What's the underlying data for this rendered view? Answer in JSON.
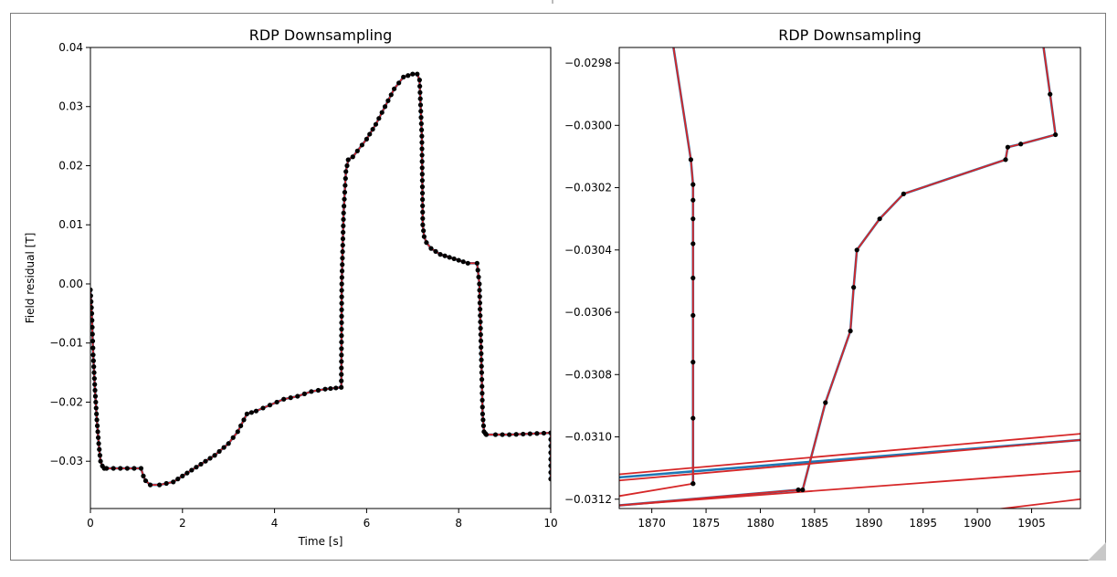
{
  "chart_data": [
    {
      "type": "line",
      "title": "RDP Downsampling",
      "xlabel": "Time [s]",
      "ylabel": "Field residual [T]",
      "xlim": [
        0,
        10
      ],
      "ylim": [
        -0.038,
        0.04
      ],
      "xticks": [
        0,
        2,
        4,
        6,
        8,
        10
      ],
      "xtick_labels": [
        "0",
        "2",
        "4",
        "6",
        "8",
        "10"
      ],
      "yticks": [
        -0.03,
        -0.02,
        -0.01,
        0.0,
        0.01,
        0.02,
        0.03,
        0.04
      ],
      "ytick_labels": [
        "−0.03",
        "−0.02",
        "−0.01",
        "0.00",
        "0.01",
        "0.02",
        "0.03",
        "0.04"
      ],
      "grid": false,
      "colors": {
        "original": "#1f77b4",
        "downsampled": "#d62728",
        "markers": "#000000"
      },
      "series": [
        {
          "role": "original",
          "x": [
            0,
            0.03,
            0.06,
            0.1,
            0.14,
            0.18,
            0.22,
            0.26,
            0.3,
            0.35,
            1.1,
            1.15,
            1.2,
            1.3,
            1.5,
            1.8,
            2.0,
            2.2,
            2.5,
            2.7,
            3.0,
            3.2,
            3.4,
            3.6,
            3.9,
            4.2,
            4.5,
            4.8,
            5.1,
            5.45,
            5.46,
            5.5,
            5.55,
            5.6,
            5.7,
            5.8,
            6.0,
            6.2,
            6.4,
            6.6,
            6.8,
            7.0,
            7.1,
            7.15,
            7.2,
            7.22,
            7.25,
            7.3,
            7.4,
            7.6,
            7.8,
            8.0,
            8.2,
            8.4,
            8.45,
            8.5,
            8.52,
            8.55,
            8.58,
            8.6,
            8.8,
            9.1,
            10.0,
            10.0
          ],
          "y": [
            -0.001,
            -0.005,
            -0.012,
            -0.018,
            -0.023,
            -0.027,
            -0.03,
            -0.0308,
            -0.0312,
            -0.0312,
            -0.0312,
            -0.0325,
            -0.0333,
            -0.034,
            -0.034,
            -0.0335,
            -0.0325,
            -0.0315,
            -0.03,
            -0.029,
            -0.027,
            -0.025,
            -0.022,
            -0.0215,
            -0.0205,
            -0.0195,
            -0.019,
            -0.0182,
            -0.0178,
            -0.0175,
            0.0,
            0.012,
            0.019,
            0.021,
            0.0215,
            0.0225,
            0.0245,
            0.027,
            0.03,
            0.033,
            0.035,
            0.0355,
            0.0355,
            0.0345,
            0.025,
            0.01,
            0.008,
            0.007,
            0.006,
            0.005,
            0.0045,
            0.004,
            0.0035,
            0.0035,
            0.0,
            -0.015,
            -0.022,
            -0.025,
            -0.0253,
            -0.0255,
            -0.0255,
            -0.0255,
            -0.0252,
            -0.033
          ]
        },
        {
          "role": "downsampled",
          "x": [
            0,
            0.03,
            0.06,
            0.1,
            0.14,
            0.18,
            0.22,
            0.26,
            0.3,
            0.35,
            1.1,
            1.15,
            1.2,
            1.3,
            1.5,
            1.8,
            2.0,
            2.2,
            2.5,
            2.7,
            3.0,
            3.2,
            3.4,
            3.6,
            3.9,
            4.2,
            4.5,
            4.8,
            5.1,
            5.45,
            5.46,
            5.5,
            5.55,
            5.6,
            5.7,
            5.8,
            6.0,
            6.2,
            6.4,
            6.6,
            6.8,
            7.0,
            7.1,
            7.15,
            7.2,
            7.22,
            7.25,
            7.3,
            7.4,
            7.6,
            7.8,
            8.0,
            8.2,
            8.4,
            8.45,
            8.5,
            8.52,
            8.55,
            8.58,
            8.6,
            8.8,
            9.1,
            10.0,
            10.0
          ],
          "y": [
            -0.001,
            -0.005,
            -0.012,
            -0.018,
            -0.023,
            -0.027,
            -0.03,
            -0.0308,
            -0.0312,
            -0.0312,
            -0.0312,
            -0.0325,
            -0.0333,
            -0.034,
            -0.034,
            -0.0335,
            -0.0325,
            -0.0315,
            -0.03,
            -0.029,
            -0.027,
            -0.025,
            -0.022,
            -0.0215,
            -0.0205,
            -0.0195,
            -0.019,
            -0.0182,
            -0.0178,
            -0.0175,
            0.0,
            0.012,
            0.019,
            0.021,
            0.0215,
            0.0225,
            0.0245,
            0.027,
            0.03,
            0.033,
            0.035,
            0.0355,
            0.0355,
            0.0345,
            0.025,
            0.01,
            0.008,
            0.007,
            0.006,
            0.005,
            0.0045,
            0.004,
            0.0035,
            0.0035,
            0.0,
            -0.015,
            -0.022,
            -0.025,
            -0.0253,
            -0.0255,
            -0.0255,
            -0.0255,
            -0.0252,
            -0.033
          ]
        }
      ]
    },
    {
      "type": "line",
      "title": "RDP Downsampling",
      "xlabel": "",
      "ylabel": "",
      "xlim": [
        1867,
        1909.5
      ],
      "ylim": [
        -0.03123,
        -0.02975
      ],
      "xticks": [
        1870,
        1875,
        1880,
        1885,
        1890,
        1895,
        1900,
        1905
      ],
      "xtick_labels": [
        "1870",
        "1875",
        "1880",
        "1885",
        "1890",
        "1895",
        "1900",
        "1905"
      ],
      "yticks": [
        -0.0298,
        -0.03,
        -0.0302,
        -0.0304,
        -0.0306,
        -0.0308,
        -0.031,
        -0.0312
      ],
      "ytick_labels": [
        "−0.0298",
        "−0.0300",
        "−0.0302",
        "−0.0304",
        "−0.0306",
        "−0.0308",
        "−0.0310",
        "−0.0312"
      ],
      "grid": false,
      "colors": {
        "original": "#1f77b4",
        "downsampled": "#d62728",
        "markers": "#000000"
      },
      "series": [
        {
          "role": "original-segment-1",
          "x": [
            1872.0,
            1873.6,
            1873.8,
            1873.8,
            1873.8
          ],
          "y": [
            -0.02975,
            -0.03011,
            -0.03019,
            -0.0305,
            -0.03115
          ]
        },
        {
          "role": "original-segment-2",
          "x": [
            1867,
            1883.5,
            1883.9,
            1886.0,
            1888.3,
            1888.6,
            1888.9,
            1891.0,
            1893.2,
            1902.6,
            1902.8,
            1904.0,
            1907.2,
            1906.7,
            1906.1
          ],
          "y": [
            -0.03122,
            -0.03117,
            -0.03117,
            -0.03089,
            -0.03066,
            -0.03052,
            -0.0304,
            -0.0303,
            -0.03022,
            -0.03011,
            -0.03007,
            -0.03006,
            -0.03003,
            -0.0299,
            -0.02975
          ]
        },
        {
          "role": "downsampled-segment-1",
          "x": [
            1872.0,
            1873.6,
            1873.8,
            1873.8,
            1873.8
          ],
          "y": [
            -0.02975,
            -0.03011,
            -0.03019,
            -0.0305,
            -0.03115
          ]
        },
        {
          "role": "downsampled-segment-2",
          "x": [
            1867,
            1883.5,
            1883.9,
            1886.0,
            1888.3,
            1888.6,
            1888.9,
            1891.0,
            1893.2,
            1902.6,
            1902.8,
            1904.0,
            1907.2,
            1906.7,
            1906.1
          ],
          "y": [
            -0.03122,
            -0.03117,
            -0.03117,
            -0.03089,
            -0.03066,
            -0.03052,
            -0.0304,
            -0.0303,
            -0.03022,
            -0.03011,
            -0.03007,
            -0.03006,
            -0.03003,
            -0.0299,
            -0.02975
          ]
        },
        {
          "role": "downsampled-line-a",
          "x": [
            1867,
            1909.5
          ],
          "y": [
            -0.03112,
            -0.03099
          ]
        },
        {
          "role": "downsampled-line-b",
          "x": [
            1867,
            1909.5
          ],
          "y": [
            -0.03114,
            -0.03101
          ]
        },
        {
          "role": "original-line-a",
          "x": [
            1867,
            1909.5
          ],
          "y": [
            -0.03113,
            -0.03101
          ]
        },
        {
          "role": "downsampled-line-c",
          "x": [
            1867,
            1909.5
          ],
          "y": [
            -0.03122,
            -0.03111
          ]
        },
        {
          "role": "downsampled-line-d",
          "x": [
            1867,
            1873.8
          ],
          "y": [
            -0.03119,
            -0.03115
          ]
        },
        {
          "role": "downsampled-line-e",
          "x": [
            1900.0,
            1909.5
          ],
          "y": [
            -0.03124,
            -0.0312
          ]
        }
      ],
      "markers": {
        "x": [
          1873.6,
          1873.8,
          1873.8,
          1873.8,
          1873.8,
          1873.8,
          1873.8,
          1873.8,
          1873.8,
          1873.8,
          1873.8,
          1883.5,
          1883.9,
          1886.0,
          1888.3,
          1888.6,
          1888.9,
          1891.0,
          1893.2,
          1902.6,
          1902.8,
          1904.0,
          1907.2,
          1906.7
        ],
        "y": [
          -0.03011,
          -0.03019,
          -0.03024,
          -0.0303,
          -0.03038,
          -0.03049,
          -0.03061,
          -0.03076,
          -0.03094,
          -0.03115,
          -0.03115,
          -0.03117,
          -0.03117,
          -0.03089,
          -0.03066,
          -0.03052,
          -0.0304,
          -0.0303,
          -0.03022,
          -0.03011,
          -0.03007,
          -0.03006,
          -0.03003,
          -0.0299
        ]
      }
    }
  ]
}
